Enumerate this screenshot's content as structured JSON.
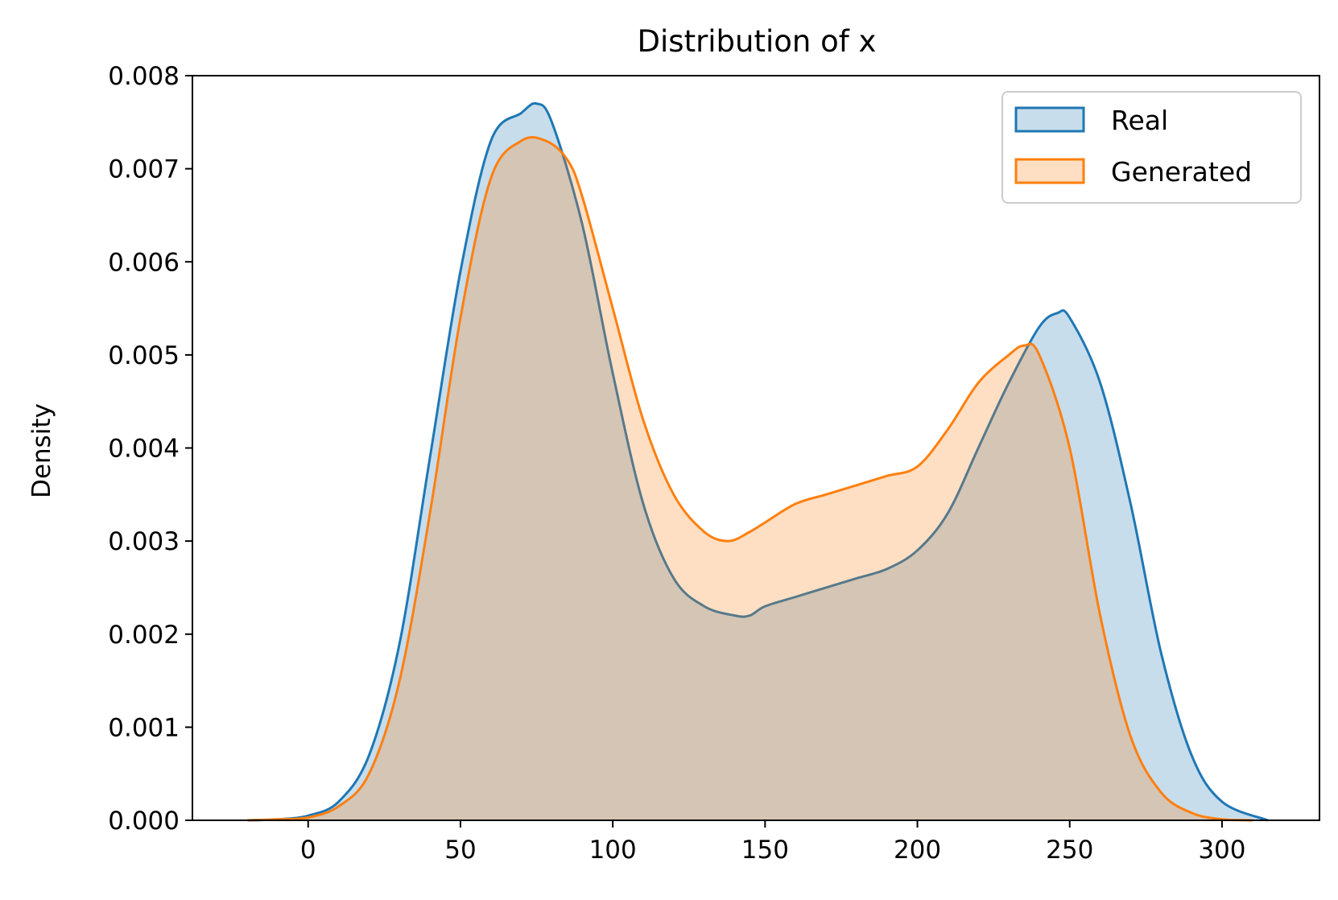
{
  "chart_data": {
    "type": "area",
    "title": "Distribution of x",
    "xlabel": "",
    "ylabel": "Density",
    "xlim": [
      -38,
      332
    ],
    "ylim": [
      0,
      0.008
    ],
    "xticks": [
      0,
      50,
      100,
      150,
      200,
      250,
      300
    ],
    "xtick_labels": [
      "0",
      "50",
      "100",
      "150",
      "200",
      "250",
      "300"
    ],
    "yticks": [
      0,
      0.001,
      0.002,
      0.003,
      0.004,
      0.005,
      0.006,
      0.007,
      0.008
    ],
    "ytick_labels": [
      "0.000",
      "0.001",
      "0.002",
      "0.003",
      "0.004",
      "0.005",
      "0.006",
      "0.007",
      "0.008"
    ],
    "grid": false,
    "legend_position": "top-right",
    "series": [
      {
        "name": "Real",
        "color": "#1f77b4",
        "x": [
          -20,
          -10,
          0,
          10,
          20,
          30,
          40,
          50,
          60,
          70,
          75,
          80,
          90,
          100,
          110,
          120,
          130,
          140,
          145,
          150,
          160,
          170,
          180,
          190,
          200,
          210,
          220,
          230,
          240,
          246,
          250,
          260,
          270,
          280,
          290,
          300,
          315
        ],
        "y": [
          0.0,
          1e-05,
          5e-05,
          0.0002,
          0.0007,
          0.0019,
          0.0039,
          0.0059,
          0.0073,
          0.0076,
          0.0077,
          0.0075,
          0.0064,
          0.0048,
          0.0034,
          0.0026,
          0.0023,
          0.0022,
          0.0022,
          0.0023,
          0.0024,
          0.0025,
          0.0026,
          0.0027,
          0.0029,
          0.0033,
          0.004,
          0.0047,
          0.0053,
          0.00545,
          0.0054,
          0.0047,
          0.0034,
          0.0018,
          0.0007,
          0.0002,
          0.0
        ]
      },
      {
        "name": "Generated",
        "color": "#ff7f0e",
        "x": [
          -20,
          -10,
          0,
          10,
          20,
          30,
          40,
          50,
          60,
          70,
          78,
          85,
          90,
          100,
          110,
          120,
          130,
          138,
          145,
          150,
          160,
          170,
          180,
          190,
          200,
          210,
          220,
          230,
          235,
          240,
          250,
          260,
          270,
          280,
          290,
          300,
          310
        ],
        "y": [
          0.0,
          1e-05,
          3e-05,
          0.00015,
          0.0005,
          0.0015,
          0.0033,
          0.0054,
          0.0069,
          0.0073,
          0.0073,
          0.0071,
          0.0067,
          0.0055,
          0.0043,
          0.0035,
          0.0031,
          0.003,
          0.0031,
          0.0032,
          0.0034,
          0.0035,
          0.0036,
          0.0037,
          0.0038,
          0.0042,
          0.0047,
          0.005,
          0.0051,
          0.005,
          0.004,
          0.0022,
          0.0009,
          0.0003,
          8e-05,
          1e-05,
          0.0
        ]
      }
    ]
  }
}
